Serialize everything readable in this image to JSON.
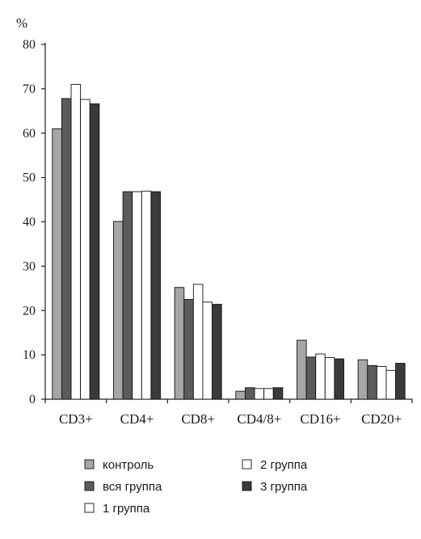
{
  "chart_data": {
    "type": "bar",
    "title": "",
    "xlabel": "",
    "ylabel": "",
    "unit": "%",
    "ylim": [
      0,
      80
    ],
    "yticks": [
      0,
      10,
      20,
      30,
      40,
      50,
      60,
      70,
      80
    ],
    "grid": false,
    "legend_position": "bottom",
    "categories": [
      "CD3+",
      "CD4+",
      "CD8+",
      "CD4/8+",
      "CD16+",
      "CD20+"
    ],
    "series": [
      {
        "name": "контроль",
        "color": "#a6a6a6",
        "values": [
          61.0,
          40.1,
          25.2,
          1.8,
          13.3,
          8.9
        ]
      },
      {
        "name": "вся группа",
        "color": "#5c5c5c",
        "values": [
          67.8,
          46.8,
          22.5,
          2.6,
          9.5,
          7.6
        ]
      },
      {
        "name": "1 группа",
        "color": "#ffffff",
        "values": [
          71.0,
          46.8,
          25.9,
          2.4,
          10.2,
          7.4
        ]
      },
      {
        "name": "2 группа",
        "color": "#ffffff",
        "values": [
          67.6,
          46.9,
          21.9,
          2.4,
          9.4,
          6.5
        ]
      },
      {
        "name": "3 группа",
        "color": "#3a3a3a",
        "values": [
          66.6,
          46.8,
          21.4,
          2.6,
          9.1,
          8.1
        ]
      }
    ]
  }
}
